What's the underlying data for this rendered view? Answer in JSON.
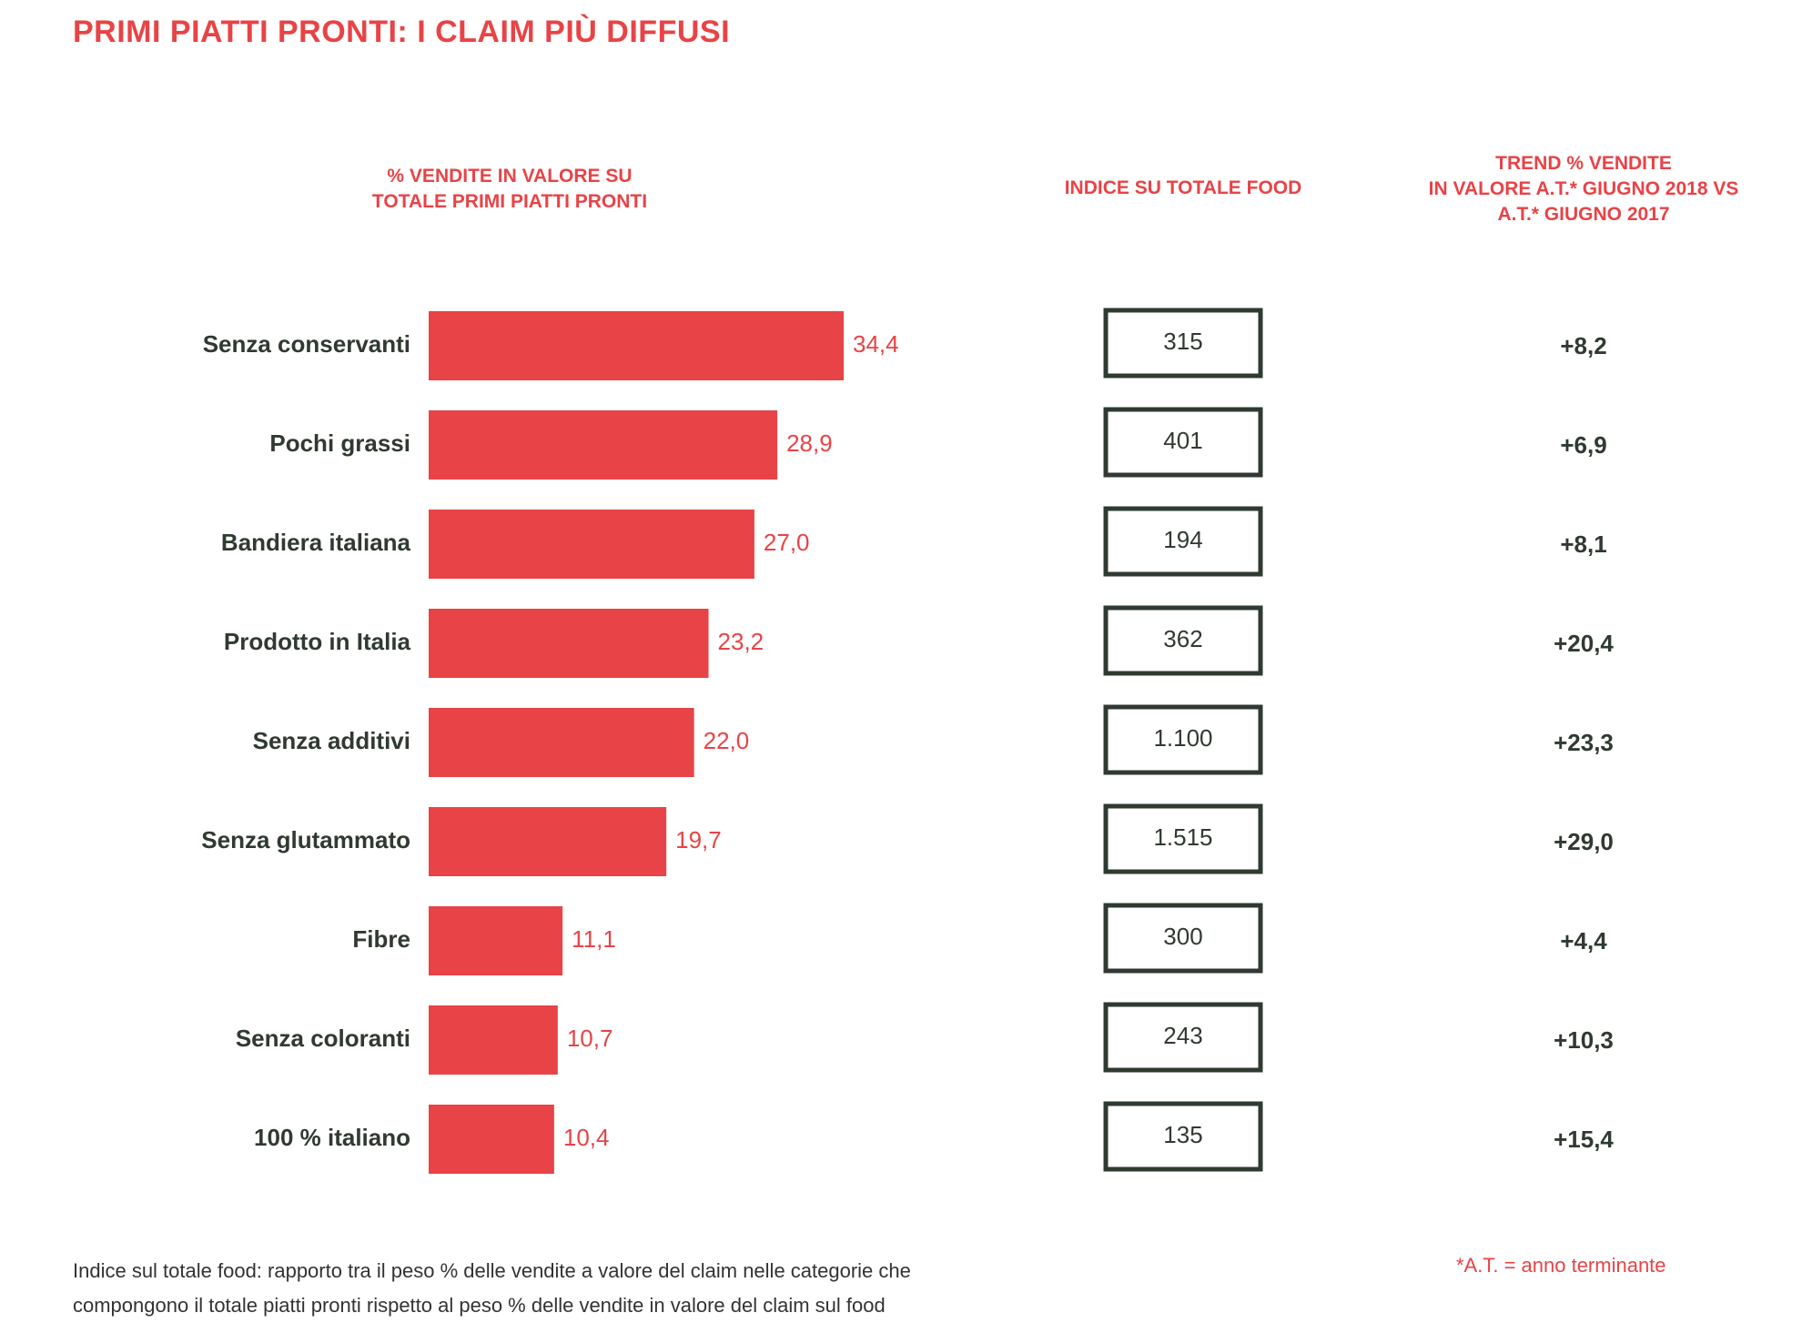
{
  "title": "PRIMI PIATTI PRONTI: I CLAIM PIÙ DIFFUSI",
  "columns": {
    "sales": "% VENDITE IN VALORE SU\nTOTALE PRIMI PIATTI PRONTI",
    "index": "INDICE SU TOTALE FOOD",
    "trend": "TREND % VENDITE\nIN VALORE A.T.* GIUGNO 2018 VS\nA.T.* GIUGNO 2017"
  },
  "colors": {
    "accent": "#e84346",
    "dark": "#2f3a30",
    "bar": "#e84346"
  },
  "chart_data": {
    "type": "bar",
    "orientation": "horizontal",
    "categories": [
      "Senza conservanti",
      "Pochi grassi",
      "Bandiera italiana",
      "Prodotto in Italia",
      "Senza additivi",
      "Senza glutammato",
      "Fibre",
      "Senza coloranti",
      "100 % italiano"
    ],
    "values": [
      34.4,
      28.9,
      27.0,
      23.2,
      22.0,
      19.7,
      11.1,
      10.7,
      10.4
    ],
    "value_labels": [
      "34,4",
      "28,9",
      "27,0",
      "23,2",
      "22,0",
      "19,7",
      "11,1",
      "10,7",
      "10,4"
    ],
    "index_values": [
      "315",
      "401",
      "194",
      "362",
      "1.100",
      "1.515",
      "300",
      "243",
      "135"
    ],
    "trend_values": [
      "+8,2",
      "+6,9",
      "+8,1",
      "+20,4",
      "+23,3",
      "+29,0",
      "+4,4",
      "+10,3",
      "+15,4"
    ],
    "xlim": [
      0,
      34.4
    ],
    "grid": false,
    "legend": "none"
  },
  "footer": {
    "note_line1": "Indice sul totale food: rapporto tra il peso % delle vendite a valore del claim nelle categorie che",
    "note_line2": "compongono il totale piatti pronti rispetto al peso % delle vendite in valore del claim sul food",
    "footnote": "*A.T. = anno terminante"
  }
}
